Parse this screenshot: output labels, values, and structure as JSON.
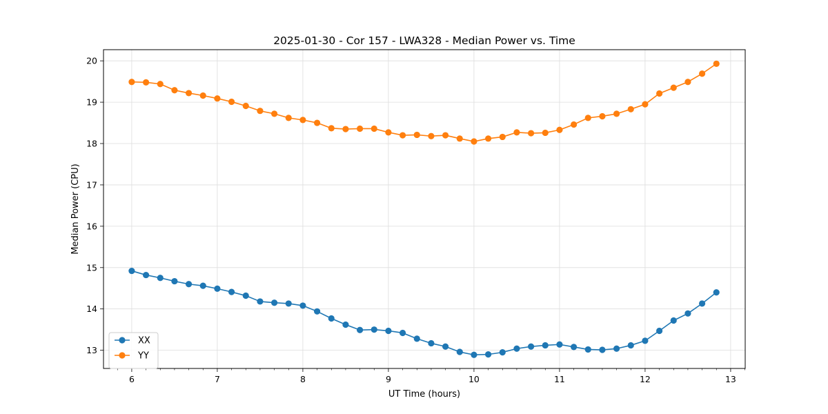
{
  "chart_data": {
    "type": "line",
    "title": "2025-01-30 - Cor 157 - LWA328 - Median Power vs. Time",
    "xlabel": "UT Time (hours)",
    "ylabel": "Median Power (CPU)",
    "xlim": [
      5.67,
      13.17
    ],
    "ylim": [
      12.56,
      20.27
    ],
    "xticks": [
      6,
      7,
      8,
      9,
      10,
      11,
      12,
      13
    ],
    "yticks": [
      13,
      14,
      15,
      16,
      17,
      18,
      19,
      20
    ],
    "grid": true,
    "legend_position": "lower-left",
    "x": [
      6.0,
      6.1667,
      6.3333,
      6.5,
      6.6667,
      6.8333,
      7.0,
      7.1667,
      7.3333,
      7.5,
      7.6667,
      7.8333,
      8.0,
      8.1667,
      8.3333,
      8.5,
      8.6667,
      8.8333,
      9.0,
      9.1667,
      9.3333,
      9.5,
      9.6667,
      9.8333,
      10.0,
      10.1667,
      10.3333,
      10.5,
      10.6667,
      10.8333,
      11.0,
      11.1667,
      11.3333,
      11.5,
      11.6667,
      11.8333,
      12.0,
      12.1667,
      12.3333,
      12.5,
      12.6667,
      12.8333
    ],
    "series": [
      {
        "name": "XX",
        "color": "#1f77b4",
        "values": [
          14.92,
          14.82,
          14.75,
          14.67,
          14.6,
          14.56,
          14.49,
          14.41,
          14.32,
          14.18,
          14.15,
          14.13,
          14.08,
          13.94,
          13.77,
          13.62,
          13.49,
          13.5,
          13.47,
          13.42,
          13.28,
          13.17,
          13.09,
          12.96,
          12.89,
          12.9,
          12.95,
          13.04,
          13.09,
          13.12,
          13.14,
          13.08,
          13.02,
          13.01,
          13.04,
          13.12,
          13.23,
          13.47,
          13.72,
          13.89,
          14.13,
          14.4
        ]
      },
      {
        "name": "YY",
        "color": "#ff7f0e",
        "values": [
          19.49,
          19.48,
          19.44,
          19.29,
          19.22,
          19.16,
          19.09,
          19.01,
          18.91,
          18.79,
          18.72,
          18.62,
          18.57,
          18.5,
          18.37,
          18.35,
          18.36,
          18.36,
          18.27,
          18.2,
          18.21,
          18.18,
          18.2,
          18.12,
          18.05,
          18.12,
          18.16,
          18.27,
          18.25,
          18.26,
          18.33,
          18.46,
          18.62,
          18.66,
          18.72,
          18.83,
          18.95,
          19.21,
          19.35,
          19.49,
          19.69,
          19.93
        ]
      }
    ]
  }
}
